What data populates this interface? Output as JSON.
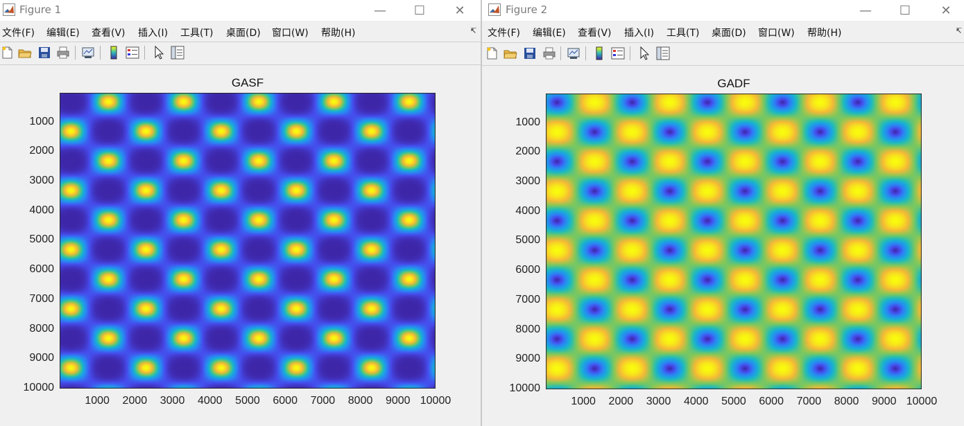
{
  "windows": [
    {
      "title": "Figure 1",
      "menu": [
        "文件(F)",
        "编辑(E)",
        "查看(V)",
        "插入(I)",
        "工具(T)",
        "桌面(D)",
        "窗口(W)",
        "帮助(H)"
      ],
      "chart_data": {
        "type": "heatmap",
        "title": "GASF",
        "xlabel": "",
        "ylabel": "",
        "xlim": [
          1,
          10000
        ],
        "ylim": [
          1,
          10000
        ],
        "y_reversed": true,
        "xticks": [
          "1000",
          "2000",
          "3000",
          "4000",
          "5000",
          "6000",
          "7000",
          "8000",
          "9000",
          "10000"
        ],
        "yticks": [
          "1000",
          "2000",
          "3000",
          "4000",
          "5000",
          "6000",
          "7000",
          "8000",
          "9000",
          "10000"
        ],
        "colormap": "parula",
        "hotspot_centers": [
          300,
          1300,
          2300,
          3300,
          4300,
          5300,
          6300,
          7300,
          8300,
          9300
        ],
        "pattern": "checkerboard of diamonds (cos(a+b)); bright where one index is an odd and the other an even-numbered hotspot center"
      }
    },
    {
      "title": "Figure 2",
      "menu": [
        "文件(F)",
        "编辑(E)",
        "查看(V)",
        "插入(I)",
        "工具(T)",
        "桌面(D)",
        "窗口(W)",
        "帮助(H)"
      ],
      "chart_data": {
        "type": "heatmap",
        "title": "GADF",
        "xlabel": "",
        "ylabel": "",
        "xlim": [
          1,
          10000
        ],
        "ylim": [
          1,
          10000
        ],
        "y_reversed": true,
        "xticks": [
          "1000",
          "2000",
          "3000",
          "4000",
          "5000",
          "6000",
          "7000",
          "8000",
          "9000",
          "10000"
        ],
        "yticks": [
          "1000",
          "2000",
          "3000",
          "4000",
          "5000",
          "6000",
          "7000",
          "8000",
          "9000",
          "10000"
        ],
        "colormap": "parula",
        "hotspot_centers": [
          300,
          1300,
          2300,
          3300,
          4300,
          5300,
          6300,
          7300,
          8300,
          9300
        ],
        "pattern": "checkerboard of diamonds (sin(a-b)); large yellow diamonds alternating with dark blue diamonds"
      }
    }
  ],
  "colors": {
    "low": "#3e26a8",
    "high": "#f9fb0e",
    "window_bg": "#f0f0f0",
    "titlebar": "#ffffff"
  },
  "toolbar_icons": [
    "new-figure-icon",
    "open-file-icon",
    "save-icon",
    "print-icon",
    "link-plot-icon",
    "colorbar-icon",
    "legend-icon",
    "pointer-icon",
    "property-inspector-icon"
  ]
}
